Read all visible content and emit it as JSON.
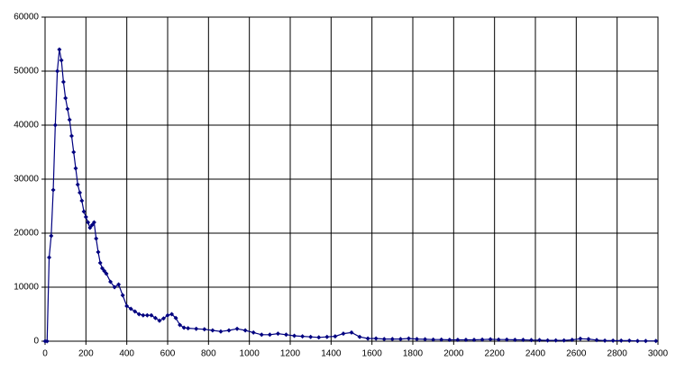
{
  "chart_data": {
    "type": "line",
    "x": [
      0,
      10,
      20,
      30,
      40,
      50,
      60,
      70,
      80,
      90,
      100,
      110,
      120,
      130,
      140,
      150,
      160,
      170,
      180,
      190,
      200,
      210,
      220,
      230,
      240,
      250,
      260,
      270,
      280,
      290,
      300,
      320,
      340,
      360,
      380,
      400,
      420,
      440,
      460,
      480,
      500,
      520,
      540,
      560,
      580,
      600,
      620,
      640,
      660,
      680,
      700,
      740,
      780,
      820,
      860,
      900,
      940,
      980,
      1020,
      1060,
      1100,
      1140,
      1180,
      1220,
      1260,
      1300,
      1340,
      1380,
      1420,
      1460,
      1500,
      1540,
      1580,
      1620,
      1660,
      1700,
      1740,
      1780,
      1820,
      1860,
      1900,
      1940,
      1980,
      2020,
      2060,
      2100,
      2140,
      2180,
      2220,
      2260,
      2300,
      2340,
      2380,
      2420,
      2460,
      2500,
      2540,
      2580,
      2620,
      2660,
      2700,
      2740,
      2780,
      2820,
      2860,
      2900,
      2940,
      2990
    ],
    "series": [
      {
        "color": "#000080",
        "values": [
          0,
          0,
          15500,
          19500,
          28000,
          40000,
          50000,
          54000,
          52000,
          48000,
          45000,
          43000,
          41000,
          38000,
          35000,
          32000,
          29000,
          27500,
          26000,
          24000,
          23000,
          22000,
          21000,
          21500,
          22000,
          19000,
          16500,
          14500,
          13500,
          13000,
          12500,
          11000,
          10000,
          10500,
          8500,
          6500,
          6000,
          5500,
          5000,
          4800,
          4800,
          4800,
          4300,
          3800,
          4200,
          4800,
          5000,
          4300,
          3000,
          2500,
          2400,
          2300,
          2200,
          2000,
          1800,
          2000,
          2300,
          2000,
          1600,
          1200,
          1200,
          1400,
          1200,
          1000,
          900,
          800,
          700,
          800,
          900,
          1400,
          1600,
          800,
          500,
          500,
          400,
          400,
          400,
          500,
          400,
          350,
          300,
          300,
          250,
          250,
          250,
          250,
          300,
          350,
          300,
          300,
          250,
          250,
          200,
          200,
          150,
          150,
          150,
          250,
          450,
          400,
          200,
          100,
          100,
          100,
          100,
          50,
          50,
          50
        ]
      }
    ],
    "xlim": [
      0,
      3000
    ],
    "ylim": [
      0,
      60000
    ],
    "xticks": [
      0,
      200,
      400,
      600,
      800,
      1000,
      1200,
      1400,
      1600,
      1800,
      2000,
      2200,
      2400,
      2600,
      2800,
      3000
    ],
    "yticks": [
      0,
      10000,
      20000,
      30000,
      40000,
      50000,
      60000
    ],
    "grid": true
  }
}
